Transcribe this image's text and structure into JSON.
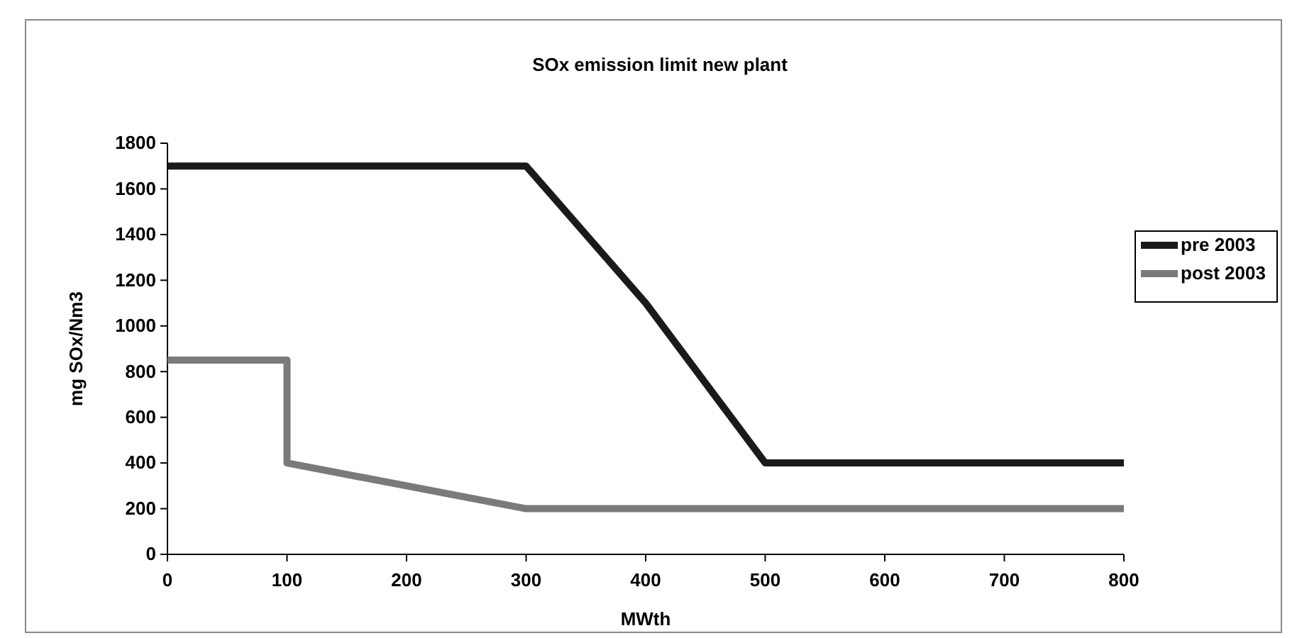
{
  "chart_data": {
    "type": "line",
    "title": "SOx emission limit new plant",
    "xlabel": "MWth",
    "ylabel": "mg SOx/Nm3",
    "xlim": [
      0,
      800
    ],
    "xticks": [
      0,
      100,
      200,
      300,
      400,
      500,
      600,
      700,
      800
    ],
    "ylim": [
      0,
      1800
    ],
    "yticks": [
      0,
      200,
      400,
      600,
      800,
      1000,
      1200,
      1400,
      1600,
      1800
    ],
    "legend": "right",
    "marker": "none",
    "line_style": "solid",
    "series": [
      {
        "name": "pre 2003",
        "color": "#1a1a1a",
        "x": [
          0,
          300,
          400,
          500,
          800
        ],
        "values": [
          1700,
          1700,
          1100,
          400,
          400
        ]
      },
      {
        "name": "post 2003",
        "color": "#7a7a7a",
        "x": [
          0,
          100,
          100,
          300,
          800
        ],
        "values": [
          850,
          850,
          400,
          200,
          200
        ]
      }
    ]
  }
}
